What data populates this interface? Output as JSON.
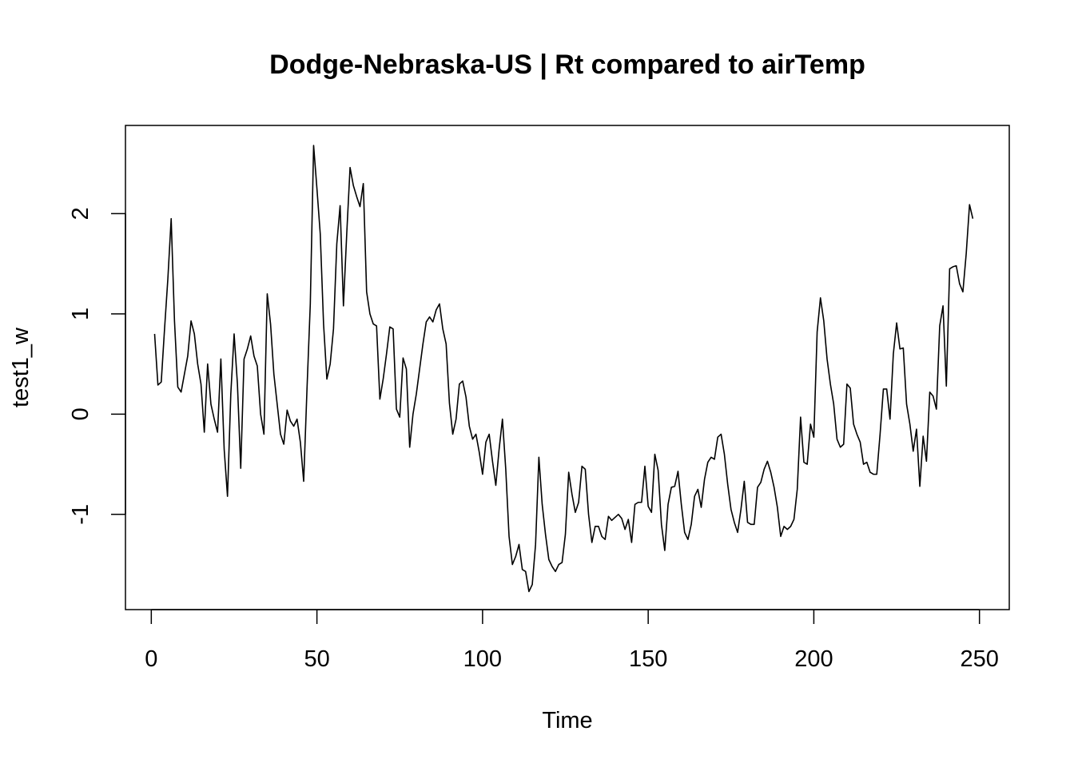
{
  "chart_data": {
    "type": "line",
    "title": "Dodge-Nebraska-US | Rt compared to airTemp",
    "xlabel": "Time",
    "ylabel": "test1_w",
    "xlim": [
      -7.8,
      259
    ],
    "ylim": [
      -1.95,
      2.88
    ],
    "x_ticks": [
      {
        "value": 0,
        "label": "0"
      },
      {
        "value": 50,
        "label": "50"
      },
      {
        "value": 100,
        "label": "100"
      },
      {
        "value": 150,
        "label": "150"
      },
      {
        "value": 200,
        "label": "200"
      },
      {
        "value": 250,
        "label": "250"
      }
    ],
    "y_ticks": [
      {
        "value": -1,
        "label": "-1"
      },
      {
        "value": 0,
        "label": "0"
      },
      {
        "value": 1,
        "label": "1"
      },
      {
        "value": 2,
        "label": "2"
      }
    ],
    "grid": false,
    "line_color": "#000000",
    "series": [
      {
        "x_start": 1,
        "x_step": 1,
        "values": [
          0.8,
          0.29,
          0.32,
          0.85,
          1.35,
          1.95,
          0.93,
          0.27,
          0.22,
          0.4,
          0.58,
          0.93,
          0.8,
          0.5,
          0.3,
          -0.18,
          0.5,
          0.1,
          -0.05,
          -0.18,
          0.55,
          -0.35,
          -0.82,
          0.2,
          0.8,
          0.3,
          -0.54,
          0.55,
          0.65,
          0.78,
          0.58,
          0.48,
          0.0,
          -0.2,
          1.2,
          0.9,
          0.4,
          0.1,
          -0.2,
          -0.3,
          0.04,
          -0.07,
          -0.12,
          -0.05,
          -0.28,
          -0.67,
          0.25,
          1.1,
          2.68,
          2.25,
          1.8,
          0.9,
          0.35,
          0.5,
          0.85,
          1.7,
          2.08,
          1.08,
          1.8,
          2.46,
          2.28,
          2.17,
          2.07,
          2.3,
          1.22,
          1.0,
          0.9,
          0.88,
          0.15,
          0.35,
          0.6,
          0.87,
          0.85,
          0.05,
          -0.03,
          0.56,
          0.45,
          -0.33,
          0.0,
          0.2,
          0.45,
          0.7,
          0.92,
          0.97,
          0.92,
          1.04,
          1.1,
          0.85,
          0.7,
          0.11,
          -0.2,
          -0.05,
          0.3,
          0.33,
          0.17,
          -0.12,
          -0.25,
          -0.2,
          -0.38,
          -0.6,
          -0.28,
          -0.2,
          -0.47,
          -0.71,
          -0.35,
          -0.05,
          -0.55,
          -1.22,
          -1.5,
          -1.42,
          -1.3,
          -1.55,
          -1.57,
          -1.77,
          -1.7,
          -1.3,
          -0.43,
          -0.9,
          -1.2,
          -1.45,
          -1.52,
          -1.57,
          -1.5,
          -1.48,
          -1.2,
          -0.58,
          -0.8,
          -0.98,
          -0.88,
          -0.52,
          -0.55,
          -1.0,
          -1.28,
          -1.12,
          -1.12,
          -1.22,
          -1.25,
          -1.02,
          -1.06,
          -1.03,
          -1.0,
          -1.04,
          -1.15,
          -1.05,
          -1.28,
          -0.9,
          -0.88,
          -0.88,
          -0.52,
          -0.92,
          -0.98,
          -0.4,
          -0.56,
          -1.1,
          -1.36,
          -0.9,
          -0.73,
          -0.72,
          -0.57,
          -0.9,
          -1.18,
          -1.25,
          -1.1,
          -0.82,
          -0.75,
          -0.93,
          -0.65,
          -0.48,
          -0.43,
          -0.45,
          -0.23,
          -0.2,
          -0.4,
          -0.7,
          -0.95,
          -1.08,
          -1.18,
          -0.95,
          -0.67,
          -1.08,
          -1.1,
          -1.1,
          -0.73,
          -0.68,
          -0.55,
          -0.47,
          -0.58,
          -0.73,
          -0.93,
          -1.22,
          -1.12,
          -1.15,
          -1.12,
          -1.05,
          -0.75,
          -0.03,
          -0.48,
          -0.5,
          -0.1,
          -0.23,
          0.82,
          1.16,
          0.93,
          0.55,
          0.3,
          0.1,
          -0.25,
          -0.33,
          -0.3,
          0.3,
          0.26,
          -0.1,
          -0.2,
          -0.28,
          -0.5,
          -0.48,
          -0.58,
          -0.6,
          -0.6,
          -0.2,
          0.25,
          0.25,
          -0.05,
          0.6,
          0.91,
          0.65,
          0.66,
          0.1,
          -0.1,
          -0.37,
          -0.15,
          -0.72,
          -0.22,
          -0.47,
          0.22,
          0.18,
          0.05,
          0.88,
          1.08,
          0.28,
          1.45,
          1.47,
          1.48,
          1.3,
          1.22,
          1.6,
          2.09,
          1.95
        ]
      }
    ]
  }
}
